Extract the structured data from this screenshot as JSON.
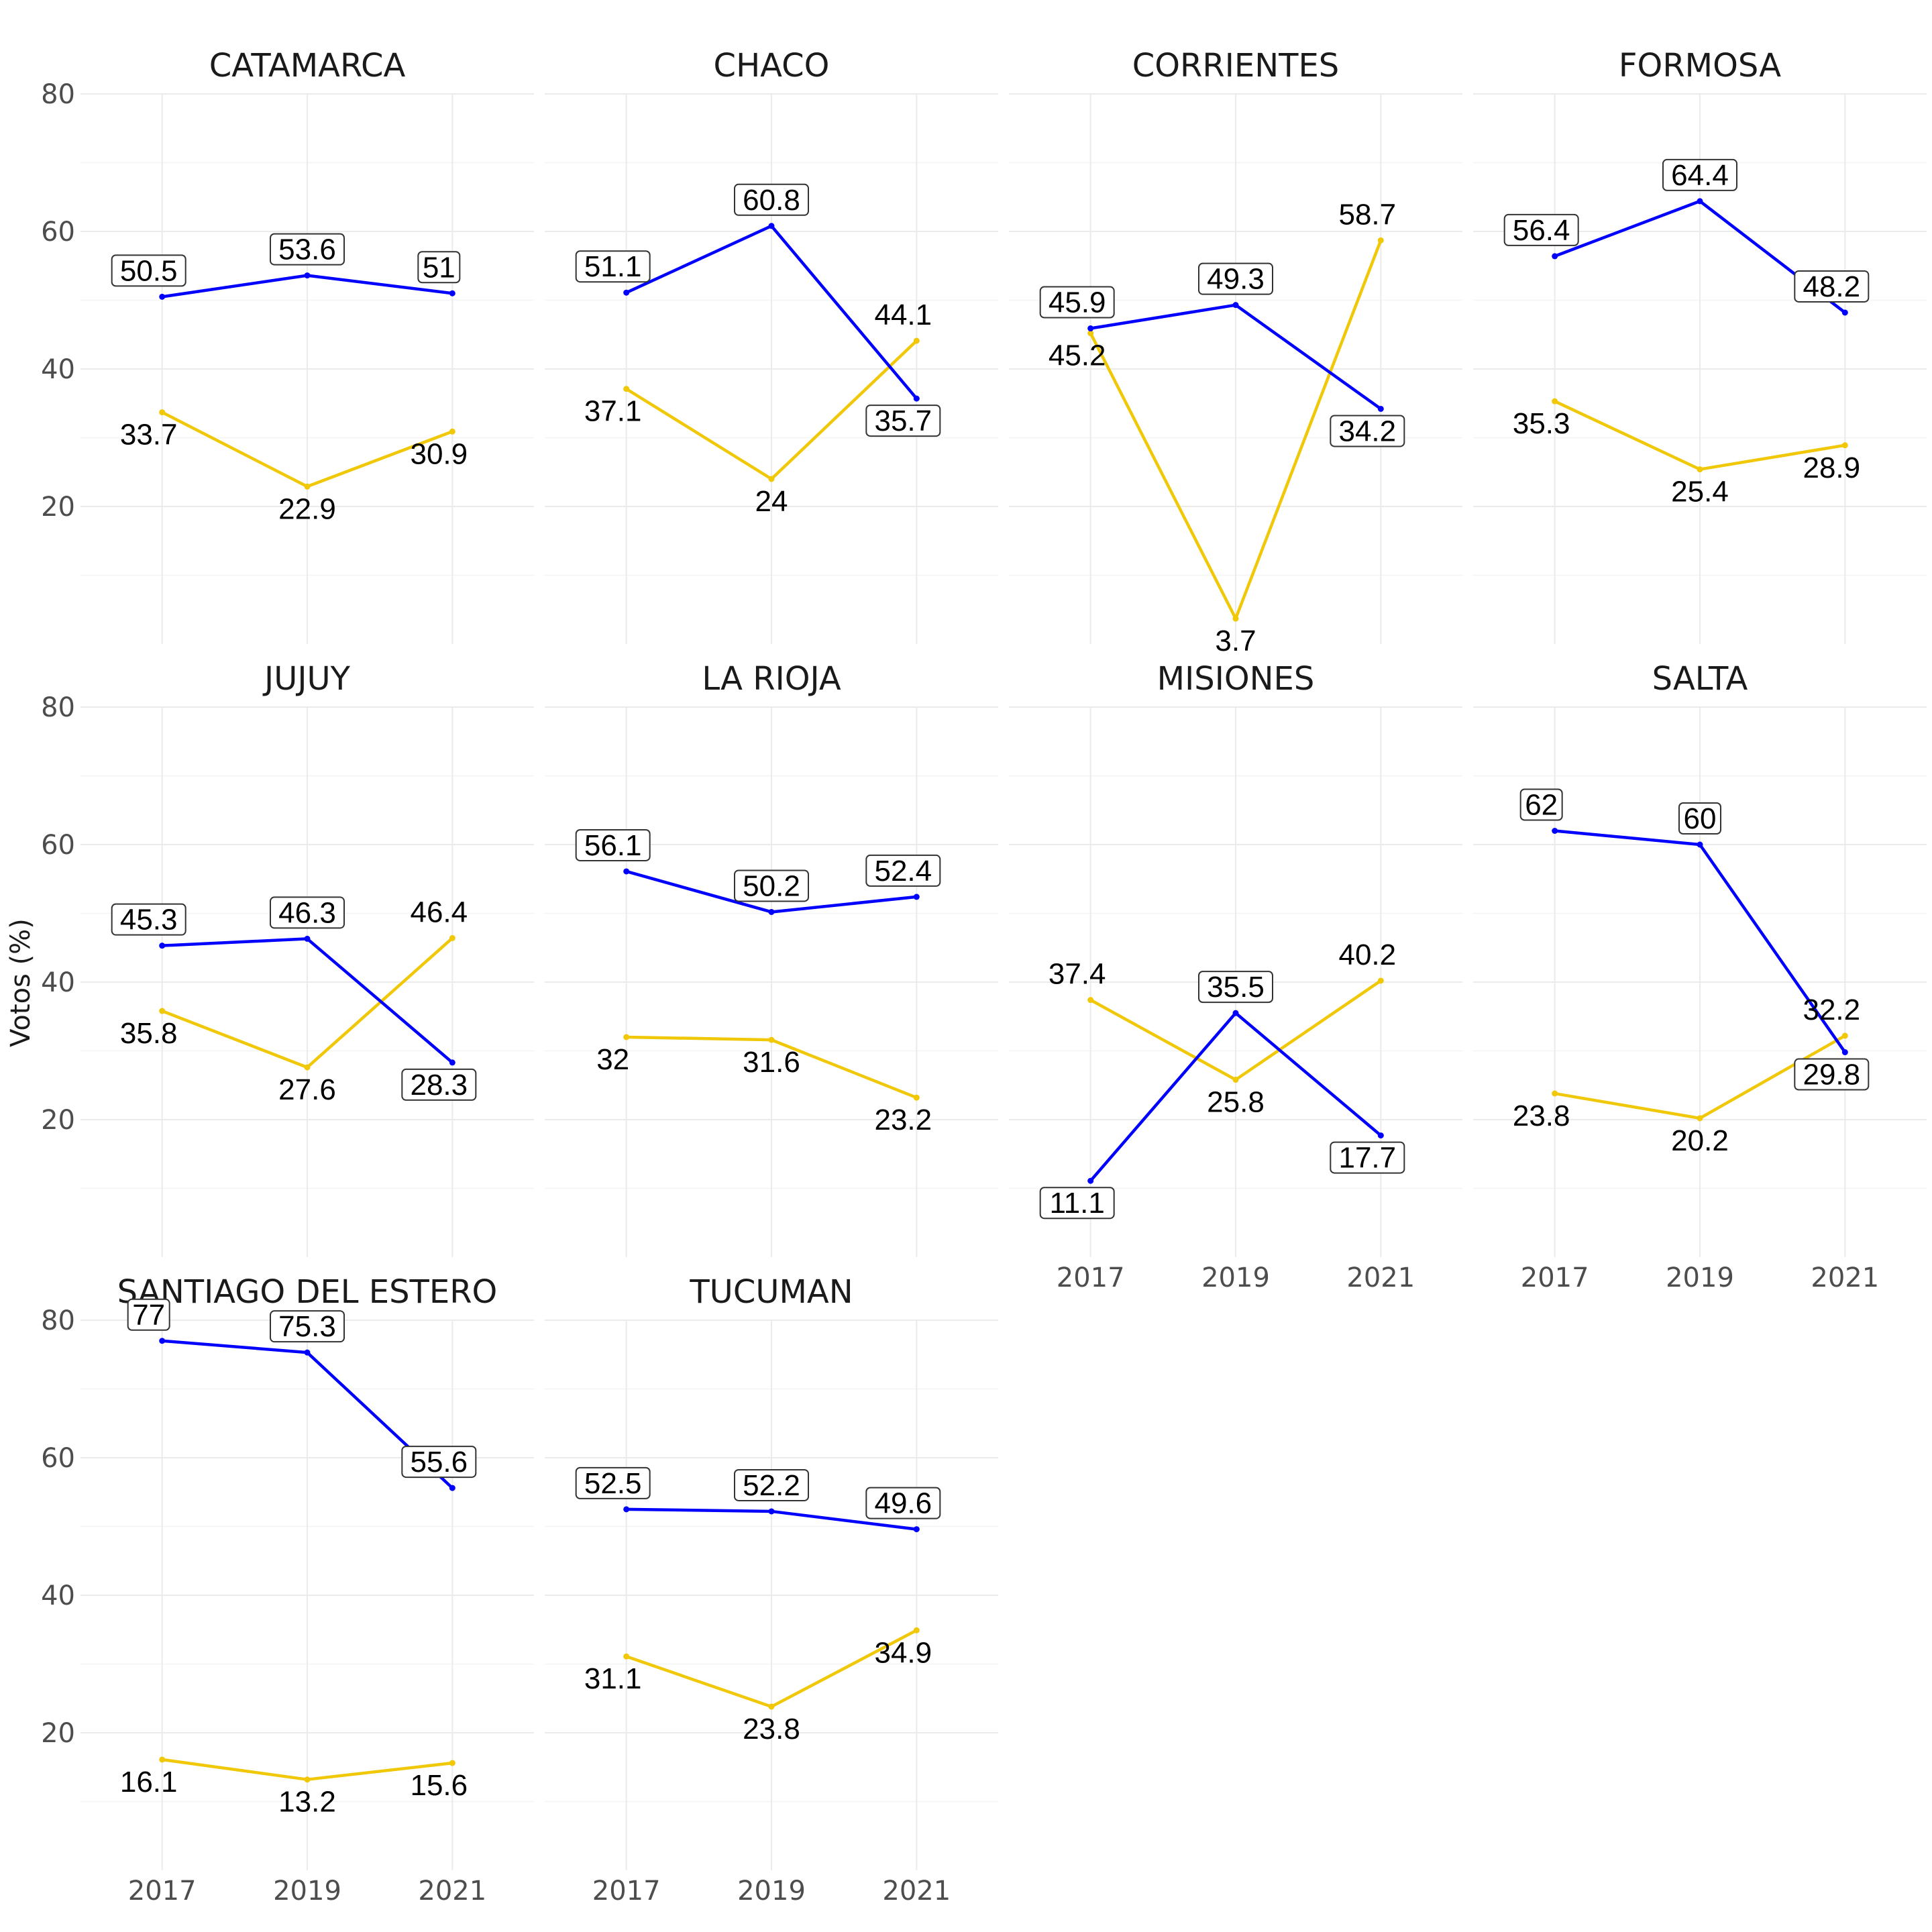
{
  "chart_data": {
    "type": "line",
    "ylabel": "Votos (%)",
    "xlabel": "",
    "x": [
      "2017",
      "2019",
      "2021"
    ],
    "ylim": [
      0,
      80
    ],
    "yticks": [
      "20",
      "40",
      "60",
      "80"
    ],
    "grid": true,
    "colors": {
      "blue_series": "#0000ff",
      "yellow_series": "#f0c808"
    },
    "facets": [
      {
        "title": "CATAMARCA",
        "blue": [
          50.5,
          53.6,
          51
        ],
        "yellow": [
          33.7,
          22.9,
          30.9
        ],
        "blue_labels": [
          "50.5",
          "53.6",
          "51"
        ],
        "yellow_labels": [
          "33.7",
          "22.9",
          "30.9"
        ]
      },
      {
        "title": "CHACO",
        "blue": [
          51.1,
          60.8,
          35.7
        ],
        "yellow": [
          37.1,
          24,
          44.1
        ],
        "blue_labels": [
          "51.1",
          "60.8",
          "35.7"
        ],
        "yellow_labels": [
          "37.1",
          "24",
          "44.1"
        ]
      },
      {
        "title": "CORRIENTES",
        "blue": [
          45.9,
          49.3,
          34.2
        ],
        "yellow": [
          45.2,
          3.7,
          58.7
        ],
        "blue_labels": [
          "45.9",
          "49.3",
          "34.2"
        ],
        "yellow_labels": [
          "45.2",
          "3.7",
          "58.7"
        ]
      },
      {
        "title": "FORMOSA",
        "blue": [
          56.4,
          64.4,
          48.2
        ],
        "yellow": [
          35.3,
          25.4,
          28.9
        ],
        "blue_labels": [
          "56.4",
          "64.4",
          "48.2"
        ],
        "yellow_labels": [
          "35.3",
          "25.4",
          "28.9"
        ]
      },
      {
        "title": "JUJUY",
        "blue": [
          45.3,
          46.3,
          28.3
        ],
        "yellow": [
          35.8,
          27.6,
          46.4
        ],
        "blue_labels": [
          "45.3",
          "46.3",
          "28.3"
        ],
        "yellow_labels": [
          "35.8",
          "27.6",
          "46.4"
        ]
      },
      {
        "title": "LA RIOJA",
        "blue": [
          56.1,
          50.2,
          52.4
        ],
        "yellow": [
          32,
          31.6,
          23.2
        ],
        "blue_labels": [
          "56.1",
          "50.2",
          "52.4"
        ],
        "yellow_labels": [
          "32",
          "31.6",
          "23.2"
        ]
      },
      {
        "title": "MISIONES",
        "blue": [
          11.1,
          35.5,
          17.7
        ],
        "yellow": [
          37.4,
          25.8,
          40.2
        ],
        "blue_labels": [
          "11.1",
          "35.5",
          "17.7"
        ],
        "yellow_labels": [
          "37.4",
          "25.8",
          "40.2"
        ]
      },
      {
        "title": "SALTA",
        "blue": [
          62,
          60,
          29.8
        ],
        "yellow": [
          23.8,
          20.2,
          32.2
        ],
        "blue_labels": [
          "62",
          "60",
          "29.8"
        ],
        "yellow_labels": [
          "23.8",
          "20.2",
          "32.2"
        ]
      },
      {
        "title": "SANTIAGO DEL ESTERO",
        "blue": [
          77,
          75.3,
          55.6
        ],
        "yellow": [
          16.1,
          13.2,
          15.6
        ],
        "blue_labels": [
          "77",
          "75.3",
          "55.6"
        ],
        "yellow_labels": [
          "16.1",
          "13.2",
          "15.6"
        ]
      },
      {
        "title": "TUCUMAN",
        "blue": [
          52.5,
          52.2,
          49.6
        ],
        "yellow": [
          31.1,
          23.8,
          34.9
        ],
        "blue_labels": [
          "52.5",
          "52.2",
          "49.6"
        ],
        "yellow_labels": [
          "31.1",
          "23.8",
          "34.9"
        ]
      }
    ]
  }
}
